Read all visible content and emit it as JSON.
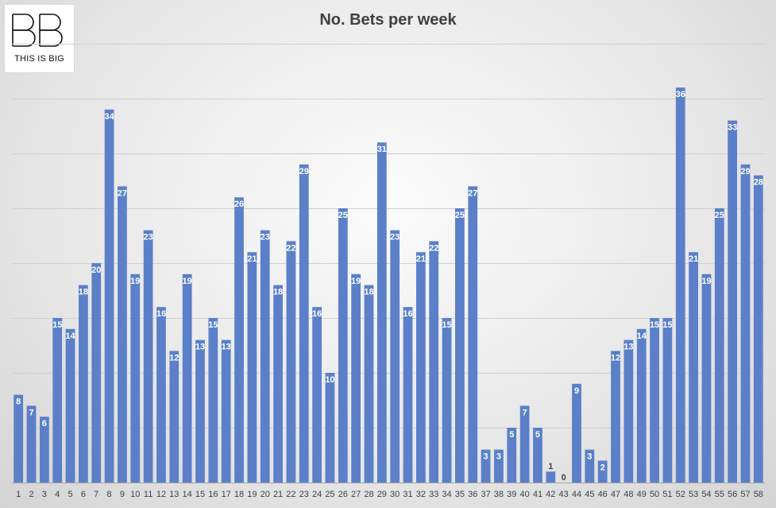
{
  "logo": {
    "mark": "BB",
    "tagline": "THIS IS BIG"
  },
  "chart_data": {
    "type": "bar",
    "title": "No. Bets per week",
    "xlabel": "",
    "ylabel": "",
    "ylim": [
      0,
      40
    ],
    "grid": true,
    "legend": "none",
    "bar_color": "#5b80c9",
    "categories": [
      "1",
      "2",
      "3",
      "4",
      "5",
      "6",
      "7",
      "8",
      "9",
      "10",
      "11",
      "12",
      "13",
      "14",
      "15",
      "16",
      "17",
      "18",
      "19",
      "20",
      "21",
      "22",
      "23",
      "24",
      "25",
      "26",
      "27",
      "28",
      "29",
      "30",
      "31",
      "32",
      "33",
      "34",
      "35",
      "36",
      "37",
      "38",
      "39",
      "40",
      "41",
      "42",
      "43",
      "44",
      "45",
      "46",
      "47",
      "48",
      "49",
      "50",
      "51",
      "52",
      "53",
      "54",
      "55",
      "56",
      "57",
      "58"
    ],
    "values": [
      8,
      7,
      6,
      15,
      14,
      18,
      20,
      34,
      27,
      19,
      23,
      16,
      12,
      19,
      13,
      15,
      13,
      26,
      21,
      23,
      18,
      22,
      29,
      16,
      10,
      25,
      19,
      18,
      31,
      23,
      16,
      21,
      22,
      15,
      25,
      27,
      3,
      3,
      5,
      7,
      5,
      1,
      0,
      9,
      3,
      2,
      12,
      13,
      14,
      15,
      15,
      36,
      21,
      19,
      25,
      33,
      29,
      28
    ]
  }
}
